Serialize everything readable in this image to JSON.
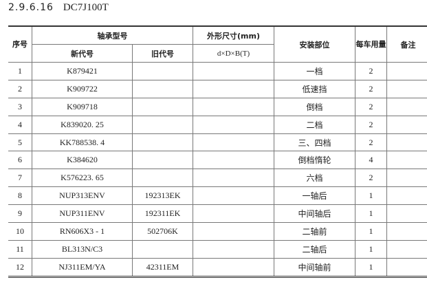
{
  "title": {
    "number": "2.9.6.16",
    "model": "DC7J100T"
  },
  "header": {
    "seq": "序号",
    "bearing_type": "轴承型号",
    "new_code": "新代号",
    "old_code": "旧代号",
    "dimensions": "外形尺寸(mm)",
    "dimensions_formula": "d×D×B(T)",
    "location": "安装部位",
    "qty": "每车用量",
    "remark": "备注"
  },
  "rows": [
    {
      "seq": "1",
      "new": "K879421",
      "old": "",
      "dim": "",
      "loc": "一档",
      "qty": "2",
      "remark": ""
    },
    {
      "seq": "2",
      "new": "K909722",
      "old": "",
      "dim": "",
      "loc": "低速挡",
      "qty": "2",
      "remark": ""
    },
    {
      "seq": "3",
      "new": "K909718",
      "old": "",
      "dim": "",
      "loc": "倒档",
      "qty": "2",
      "remark": ""
    },
    {
      "seq": "4",
      "new": "K839020. 25",
      "old": "",
      "dim": "",
      "loc": "二档",
      "qty": "2",
      "remark": ""
    },
    {
      "seq": "5",
      "new": "KK788538. 4",
      "old": "",
      "dim": "",
      "loc": "三、四档",
      "qty": "2",
      "remark": ""
    },
    {
      "seq": "6",
      "new": "K384620",
      "old": "",
      "dim": "",
      "loc": "倒档惰轮",
      "qty": "4",
      "remark": ""
    },
    {
      "seq": "7",
      "new": "K576223. 65",
      "old": "",
      "dim": "",
      "loc": "六档",
      "qty": "2",
      "remark": ""
    },
    {
      "seq": "8",
      "new": "NUP313ENV",
      "old": "192313EK",
      "dim": "",
      "loc": "一轴后",
      "qty": "1",
      "remark": ""
    },
    {
      "seq": "9",
      "new": "NUP311ENV",
      "old": "192311EK",
      "dim": "",
      "loc": "中间轴后",
      "qty": "1",
      "remark": ""
    },
    {
      "seq": "10",
      "new": "RN606X3 - 1",
      "old": "502706K",
      "dim": "",
      "loc": "二轴前",
      "qty": "1",
      "remark": ""
    },
    {
      "seq": "11",
      "new": "BL313N/C3",
      "old": "",
      "dim": "",
      "loc": "二轴后",
      "qty": "1",
      "remark": ""
    },
    {
      "seq": "12",
      "new": "NJ311EM/YA",
      "old": "42311EM",
      "dim": "",
      "loc": "中间轴前",
      "qty": "1",
      "remark": ""
    }
  ]
}
